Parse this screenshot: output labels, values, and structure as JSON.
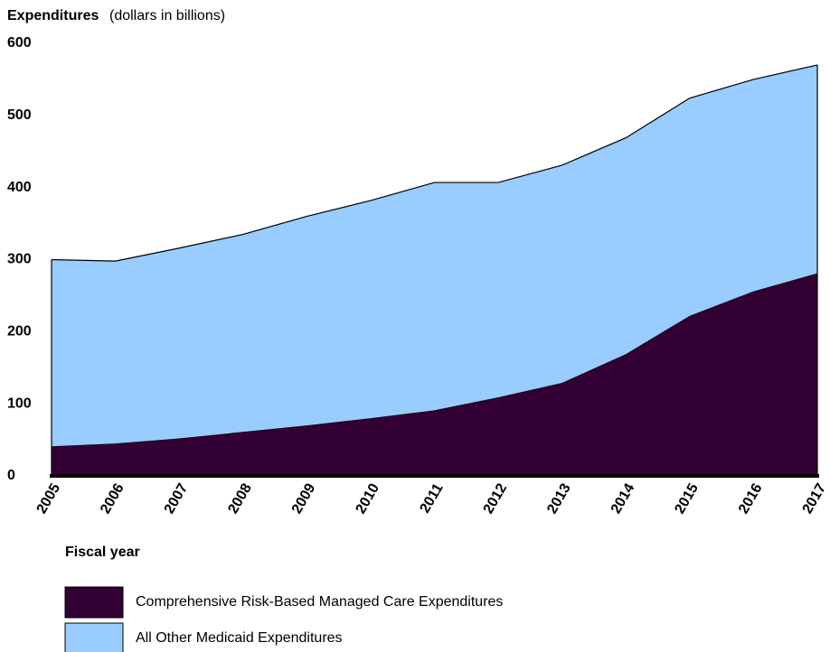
{
  "chart_data": {
    "type": "stacked_area",
    "title": "Expenditures",
    "subtitle": "(dollars in billions)",
    "x_label": "Fiscal year",
    "categories": [
      "2005",
      "2006",
      "2007",
      "2008",
      "2009",
      "2010",
      "2011",
      "2012",
      "2013",
      "2014",
      "2015",
      "2016",
      "2017"
    ],
    "series": [
      {
        "name": "Comprehensive Risk-Based Managed Care Expenditures",
        "color": "#330033",
        "values": [
          41,
          45,
          52,
          61,
          70,
          80,
          91,
          109,
          129,
          169,
          222,
          256,
          281
        ]
      },
      {
        "name": "All Other Medicaid Expenditures",
        "color": "#99ccff",
        "values": [
          259,
          253,
          264,
          274,
          290,
          302,
          316,
          298,
          302,
          300,
          302,
          294,
          289
        ]
      }
    ],
    "ylim": [
      0,
      600
    ],
    "yticks": [
      0,
      100,
      200,
      300,
      400,
      500,
      600
    ]
  }
}
